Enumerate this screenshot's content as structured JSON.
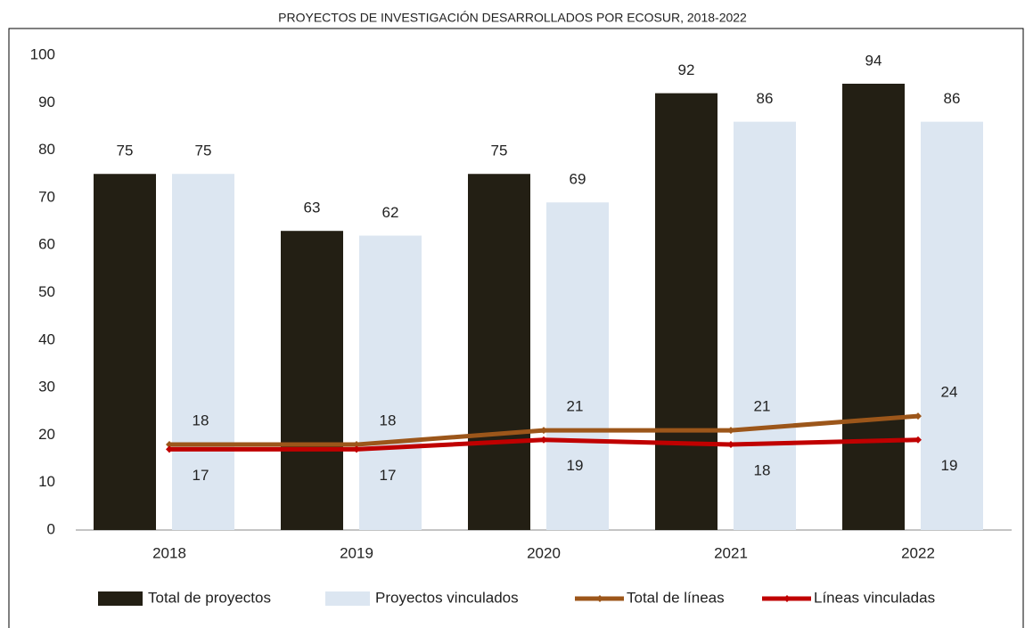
{
  "chart_data": {
    "type": "bar",
    "title": "PROYECTOS DE INVESTIGACIÓN DESARROLLADOS POR ECOSUR, 2018-2022",
    "categories": [
      "2018",
      "2019",
      "2020",
      "2021",
      "2022"
    ],
    "series": [
      {
        "name": "Total de proyectos",
        "type": "bar",
        "color": "#231f14",
        "values": [
          75,
          63,
          75,
          92,
          94
        ]
      },
      {
        "name": "Proyectos vinculados",
        "type": "bar",
        "color": "#dce6f1",
        "values": [
          75,
          62,
          69,
          86,
          86
        ]
      },
      {
        "name": "Total de líneas",
        "type": "line",
        "color": "#9c561a",
        "values": [
          18,
          18,
          21,
          21,
          24
        ]
      },
      {
        "name": "Líneas vinculadas",
        "type": "line",
        "color": "#c00000",
        "values": [
          17,
          17,
          19,
          18,
          19
        ]
      }
    ],
    "ylim": [
      0,
      100
    ],
    "yticks": [
      0,
      10,
      20,
      30,
      40,
      50,
      60,
      70,
      80,
      90,
      100
    ],
    "grid": false,
    "legend": "bottom"
  }
}
